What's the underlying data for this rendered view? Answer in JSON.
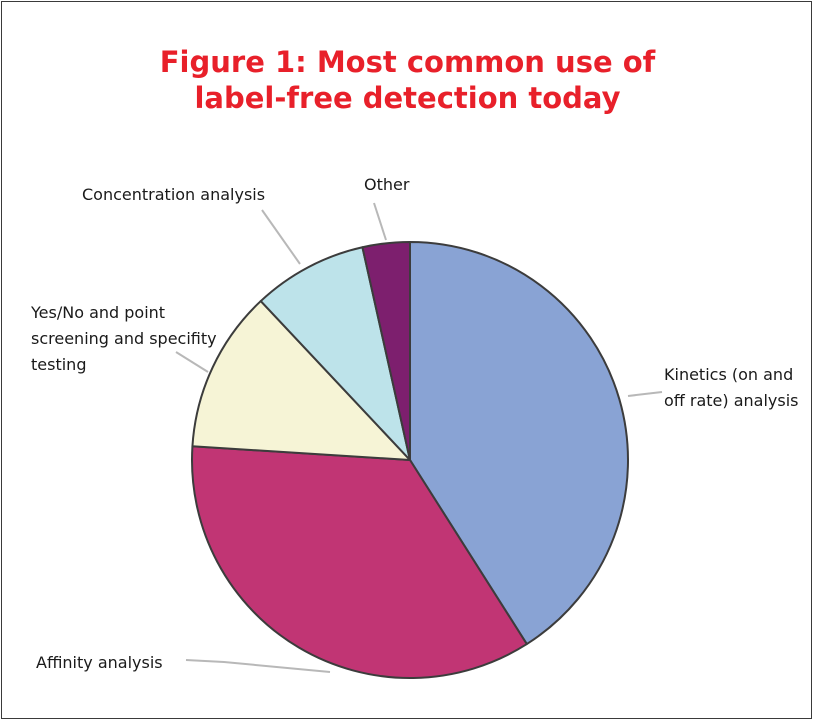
{
  "chart_data": {
    "type": "pie",
    "title_lines": [
      "Figure 1: Most common use of",
      "label-free detection today"
    ],
    "slices": [
      {
        "label_lines": [
          "Kinetics (on and",
          "off rate) analysis"
        ],
        "value": 41,
        "color": "#89a3d4"
      },
      {
        "label_lines": [
          "Affinity analysis"
        ],
        "value": 35,
        "color": "#c13574"
      },
      {
        "label_lines": [
          "Yes/No and point",
          "screening and specifity",
          "testing"
        ],
        "value": 12,
        "color": "#f6f4d6"
      },
      {
        "label_lines": [
          "Concentration analysis"
        ],
        "value": 8.5,
        "color": "#bde3ea"
      },
      {
        "label_lines": [
          "Other"
        ],
        "value": 3.5,
        "color": "#7d1f6e"
      }
    ],
    "legend": "none (leader-line labels)"
  }
}
